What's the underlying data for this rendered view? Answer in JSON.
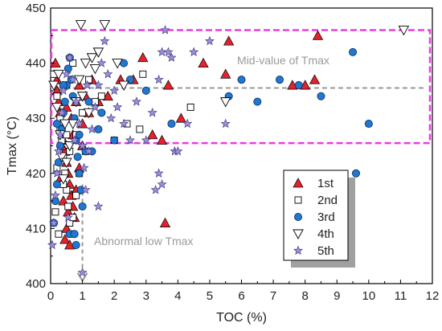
{
  "chart_data": {
    "type": "scatter",
    "xlabel": "TOC  (%)",
    "ylabel": "Tmax (°C)",
    "xlim": [
      0,
      12
    ],
    "ylim": [
      400,
      450
    ],
    "xticks": [
      "0",
      "1",
      "2",
      "3",
      "4",
      "5",
      "6",
      "7",
      "8",
      "9",
      "10",
      "11",
      "12"
    ],
    "yticks": [
      "400",
      "410",
      "420",
      "430",
      "440",
      "450"
    ],
    "grid": false,
    "legend_position": "lower-right",
    "annotations": {
      "mid_value_label": "Mid-value of Tmax",
      "mid_value_tmax": 435.5,
      "range_box": {
        "x": [
          0,
          12
        ],
        "y": [
          425.5,
          446
        ]
      },
      "abnormal_label": "Abnormal low Tmax",
      "abnormal_arrow": {
        "x": 1.0,
        "y_from": 418,
        "y_to": 400.5
      }
    },
    "series": [
      {
        "name": "1st",
        "marker": "triangle-up",
        "color": "#e8202a",
        "points": [
          [
            0.15,
            440
          ],
          [
            0.2,
            437
          ],
          [
            0.25,
            433
          ],
          [
            0.3,
            431
          ],
          [
            0.35,
            428
          ],
          [
            0.4,
            426
          ],
          [
            0.45,
            424
          ],
          [
            0.5,
            422
          ],
          [
            0.55,
            420
          ],
          [
            0.6,
            418
          ],
          [
            0.65,
            416
          ],
          [
            0.7,
            414
          ],
          [
            0.75,
            412
          ],
          [
            0.5,
            410
          ],
          [
            0.45,
            408
          ],
          [
            0.6,
            407
          ],
          [
            0.8,
            417
          ],
          [
            0.9,
            421
          ],
          [
            0.3,
            419
          ],
          [
            0.4,
            415
          ],
          [
            0.55,
            413
          ],
          [
            0.35,
            425
          ],
          [
            0.65,
            430
          ],
          [
            0.8,
            433
          ],
          [
            0.9,
            436
          ],
          [
            1.0,
            429
          ],
          [
            1.1,
            434
          ],
          [
            1.2,
            431
          ],
          [
            1.3,
            437
          ],
          [
            1.5,
            433
          ],
          [
            1.8,
            434
          ],
          [
            2.2,
            437
          ],
          [
            2.6,
            437
          ],
          [
            2.9,
            441
          ],
          [
            3.2,
            427
          ],
          [
            3.5,
            426
          ],
          [
            3.7,
            436
          ],
          [
            3.6,
            411
          ],
          [
            4.1,
            430
          ],
          [
            4.8,
            440
          ],
          [
            5.5,
            438
          ],
          [
            5.6,
            444
          ],
          [
            7.6,
            436
          ],
          [
            8.0,
            436
          ],
          [
            8.3,
            437
          ],
          [
            8.4,
            445
          ],
          [
            0.2,
            435
          ],
          [
            0.7,
            427
          ],
          [
            1.0,
            425
          ],
          [
            0.5,
            432
          ]
        ]
      },
      {
        "name": "2nd",
        "marker": "square-open",
        "color": "#000000",
        "points": [
          [
            0.1,
            438
          ],
          [
            0.2,
            434
          ],
          [
            0.3,
            430
          ],
          [
            0.35,
            426
          ],
          [
            0.4,
            423
          ],
          [
            0.45,
            420
          ],
          [
            0.5,
            417
          ],
          [
            0.55,
            414
          ],
          [
            0.6,
            411
          ],
          [
            0.65,
            409
          ],
          [
            0.7,
            412
          ],
          [
            0.8,
            416
          ],
          [
            0.9,
            420
          ],
          [
            0.3,
            428
          ],
          [
            0.5,
            436
          ],
          [
            0.7,
            440
          ],
          [
            0.2,
            421
          ],
          [
            0.4,
            418
          ],
          [
            0.6,
            424
          ],
          [
            0.8,
            427
          ],
          [
            1.0,
            431
          ],
          [
            1.1,
            424
          ],
          [
            1.2,
            437
          ],
          [
            1.4,
            433
          ],
          [
            1.6,
            434
          ],
          [
            2.0,
            426
          ],
          [
            2.4,
            429
          ],
          [
            2.8,
            428
          ],
          [
            2.9,
            438
          ],
          [
            4.4,
            432
          ],
          [
            0.15,
            413
          ],
          [
            0.25,
            409
          ],
          [
            0.5,
            427
          ]
        ]
      },
      {
        "name": "3rd",
        "marker": "circle",
        "color": "#1f78d1",
        "points": [
          [
            0.1,
            411
          ],
          [
            0.15,
            415
          ],
          [
            0.2,
            418
          ],
          [
            0.25,
            422
          ],
          [
            0.3,
            425
          ],
          [
            0.35,
            428
          ],
          [
            0.4,
            431
          ],
          [
            0.45,
            433
          ],
          [
            0.5,
            436
          ],
          [
            0.55,
            439
          ],
          [
            0.6,
            441
          ],
          [
            0.65,
            437
          ],
          [
            0.7,
            434
          ],
          [
            0.75,
            430
          ],
          [
            0.8,
            426
          ],
          [
            0.85,
            423
          ],
          [
            0.9,
            420
          ],
          [
            0.95,
            417
          ],
          [
            1.0,
            414
          ],
          [
            0.6,
            409
          ],
          [
            0.75,
            409
          ],
          [
            0.8,
            407
          ],
          [
            1.1,
            424
          ],
          [
            1.2,
            433
          ],
          [
            1.3,
            424
          ],
          [
            1.5,
            428
          ],
          [
            1.6,
            431
          ],
          [
            2.0,
            426
          ],
          [
            2.3,
            440
          ],
          [
            2.5,
            437
          ],
          [
            3.0,
            435
          ],
          [
            3.8,
            429
          ],
          [
            5.6,
            434
          ],
          [
            6.0,
            437
          ],
          [
            6.5,
            433
          ],
          [
            7.2,
            437
          ],
          [
            7.8,
            436
          ],
          [
            8.5,
            434
          ],
          [
            9.5,
            442
          ],
          [
            9.6,
            420
          ],
          [
            10.0,
            429
          ],
          [
            0.2,
            429
          ],
          [
            0.4,
            436
          ],
          [
            0.9,
            427
          ]
        ]
      },
      {
        "name": "4th",
        "marker": "triangle-down-open",
        "color": "#000000",
        "points": [
          [
            0.1,
            436
          ],
          [
            0.2,
            432
          ],
          [
            0.3,
            427
          ],
          [
            0.35,
            423
          ],
          [
            0.4,
            419
          ],
          [
            0.5,
            422
          ],
          [
            0.6,
            425
          ],
          [
            0.7,
            429
          ],
          [
            0.8,
            433
          ],
          [
            0.9,
            437
          ],
          [
            0.95,
            447
          ],
          [
            1.1,
            440
          ],
          [
            1.3,
            441
          ],
          [
            1.4,
            439
          ],
          [
            1.5,
            442
          ],
          [
            1.7,
            447
          ],
          [
            2.1,
            440
          ],
          [
            2.3,
            436
          ],
          [
            5.5,
            433
          ],
          [
            11.1,
            446
          ],
          [
            0.25,
            438
          ],
          [
            0.45,
            429
          ],
          [
            1.0,
            434
          ],
          [
            1.2,
            431
          ]
        ]
      },
      {
        "name": "5th",
        "marker": "star",
        "color": "#9a8fd6",
        "points": [
          [
            0.05,
            407
          ],
          [
            0.1,
            411
          ],
          [
            0.15,
            416
          ],
          [
            0.2,
            420
          ],
          [
            0.25,
            424
          ],
          [
            0.3,
            427
          ],
          [
            0.35,
            431
          ],
          [
            0.4,
            435
          ],
          [
            0.5,
            438
          ],
          [
            0.6,
            441
          ],
          [
            0.7,
            437
          ],
          [
            0.8,
            433
          ],
          [
            0.9,
            429
          ],
          [
            1.0,
            425
          ],
          [
            1.05,
            421
          ],
          [
            1.1,
            417
          ],
          [
            1.2,
            424
          ],
          [
            1.3,
            428
          ],
          [
            1.4,
            432
          ],
          [
            1.5,
            436
          ],
          [
            1.6,
            440
          ],
          [
            1.7,
            444
          ],
          [
            1.8,
            438
          ],
          [
            2.0,
            435
          ],
          [
            2.1,
            432
          ],
          [
            2.3,
            429
          ],
          [
            2.5,
            426
          ],
          [
            2.7,
            433
          ],
          [
            3.0,
            426
          ],
          [
            3.2,
            431
          ],
          [
            3.4,
            437
          ],
          [
            3.5,
            442
          ],
          [
            3.6,
            446
          ],
          [
            3.7,
            442
          ],
          [
            3.8,
            441
          ],
          [
            3.9,
            424
          ],
          [
            4.0,
            424
          ],
          [
            4.3,
            429
          ],
          [
            4.5,
            442
          ],
          [
            5.0,
            444
          ],
          [
            5.5,
            429
          ],
          [
            3.4,
            420
          ],
          [
            3.5,
            418
          ],
          [
            3.3,
            417
          ],
          [
            1.5,
            414
          ],
          [
            1.0,
            402
          ],
          [
            0.55,
            412
          ],
          [
            0.75,
            426
          ],
          [
            1.15,
            436
          ],
          [
            1.9,
            430
          ]
        ]
      }
    ]
  }
}
